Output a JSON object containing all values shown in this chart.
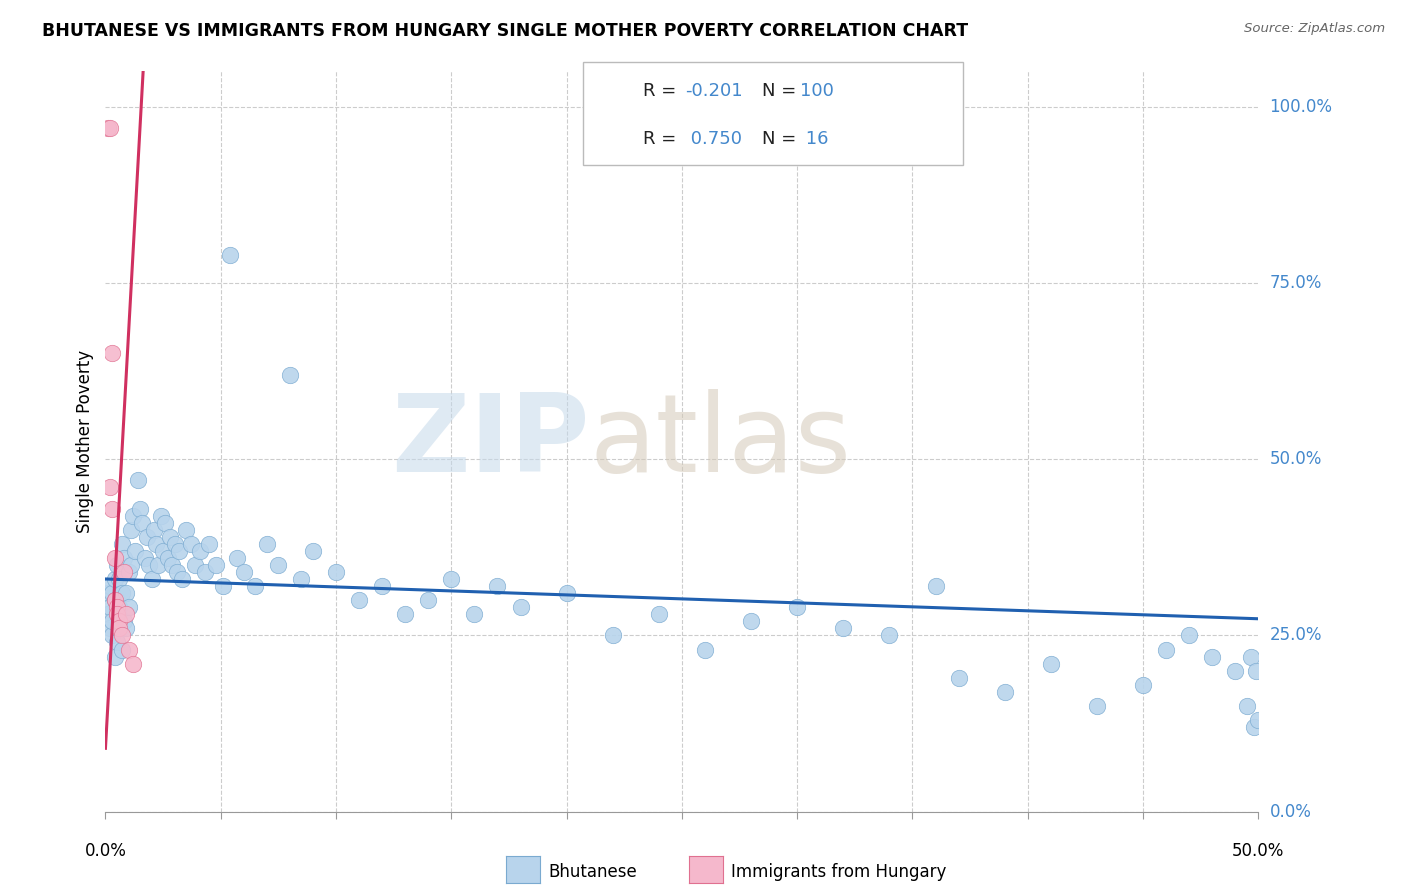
{
  "title": "BHUTANESE VS IMMIGRANTS FROM HUNGARY SINGLE MOTHER POVERTY CORRELATION CHART",
  "source": "Source: ZipAtlas.com",
  "ylabel": "Single Mother Poverty",
  "xlim": [
    0.0,
    0.5
  ],
  "ylim": [
    0.0,
    1.05
  ],
  "blue_R": -0.201,
  "blue_N": 100,
  "pink_R": 0.75,
  "pink_N": 16,
  "blue_scatter_color": "#b8d4ec",
  "pink_scatter_color": "#f5b8cc",
  "blue_edge_color": "#7aaad0",
  "pink_edge_color": "#e07090",
  "blue_line_color": "#2060b0",
  "pink_line_color": "#d03060",
  "right_label_color": "#4488cc",
  "grid_color": "#cccccc",
  "legend_label_blue": "Bhutanese",
  "legend_label_pink": "Immigrants from Hungary",
  "ytick_vals": [
    0.0,
    0.25,
    0.5,
    0.75,
    1.0
  ],
  "ytick_labels": [
    "0.0%",
    "25.0%",
    "50.0%",
    "75.0%",
    "100.0%"
  ],
  "blue_x": [
    0.001,
    0.001,
    0.002,
    0.002,
    0.002,
    0.003,
    0.003,
    0.003,
    0.004,
    0.004,
    0.004,
    0.005,
    0.005,
    0.005,
    0.005,
    0.006,
    0.006,
    0.006,
    0.007,
    0.007,
    0.007,
    0.008,
    0.008,
    0.009,
    0.009,
    0.01,
    0.01,
    0.011,
    0.011,
    0.012,
    0.013,
    0.014,
    0.015,
    0.016,
    0.017,
    0.018,
    0.019,
    0.02,
    0.021,
    0.022,
    0.023,
    0.024,
    0.025,
    0.026,
    0.027,
    0.028,
    0.029,
    0.03,
    0.031,
    0.032,
    0.033,
    0.035,
    0.037,
    0.039,
    0.041,
    0.043,
    0.045,
    0.048,
    0.051,
    0.054,
    0.057,
    0.06,
    0.065,
    0.07,
    0.075,
    0.08,
    0.085,
    0.09,
    0.1,
    0.11,
    0.12,
    0.13,
    0.14,
    0.15,
    0.16,
    0.17,
    0.18,
    0.2,
    0.22,
    0.24,
    0.26,
    0.28,
    0.3,
    0.32,
    0.34,
    0.36,
    0.37,
    0.39,
    0.41,
    0.43,
    0.45,
    0.46,
    0.47,
    0.48,
    0.49,
    0.495,
    0.497,
    0.498,
    0.499,
    0.5
  ],
  "blue_y": [
    0.31,
    0.28,
    0.32,
    0.26,
    0.29,
    0.25,
    0.27,
    0.31,
    0.22,
    0.3,
    0.33,
    0.24,
    0.28,
    0.3,
    0.35,
    0.27,
    0.33,
    0.29,
    0.38,
    0.23,
    0.31,
    0.36,
    0.27,
    0.31,
    0.26,
    0.34,
    0.29,
    0.4,
    0.35,
    0.42,
    0.37,
    0.47,
    0.43,
    0.41,
    0.36,
    0.39,
    0.35,
    0.33,
    0.4,
    0.38,
    0.35,
    0.42,
    0.37,
    0.41,
    0.36,
    0.39,
    0.35,
    0.38,
    0.34,
    0.37,
    0.33,
    0.4,
    0.38,
    0.35,
    0.37,
    0.34,
    0.38,
    0.35,
    0.32,
    0.79,
    0.36,
    0.34,
    0.32,
    0.38,
    0.35,
    0.62,
    0.33,
    0.37,
    0.34,
    0.3,
    0.32,
    0.28,
    0.3,
    0.33,
    0.28,
    0.32,
    0.29,
    0.31,
    0.25,
    0.28,
    0.23,
    0.27,
    0.29,
    0.26,
    0.25,
    0.32,
    0.19,
    0.17,
    0.21,
    0.15,
    0.18,
    0.23,
    0.25,
    0.22,
    0.2,
    0.15,
    0.22,
    0.12,
    0.2,
    0.13
  ],
  "pink_x": [
    0.001,
    0.002,
    0.002,
    0.003,
    0.003,
    0.004,
    0.004,
    0.005,
    0.005,
    0.006,
    0.006,
    0.007,
    0.008,
    0.009,
    0.01,
    0.012
  ],
  "pink_y": [
    0.97,
    0.97,
    0.46,
    0.65,
    0.43,
    0.36,
    0.3,
    0.29,
    0.28,
    0.27,
    0.26,
    0.25,
    0.34,
    0.28,
    0.23,
    0.21
  ]
}
